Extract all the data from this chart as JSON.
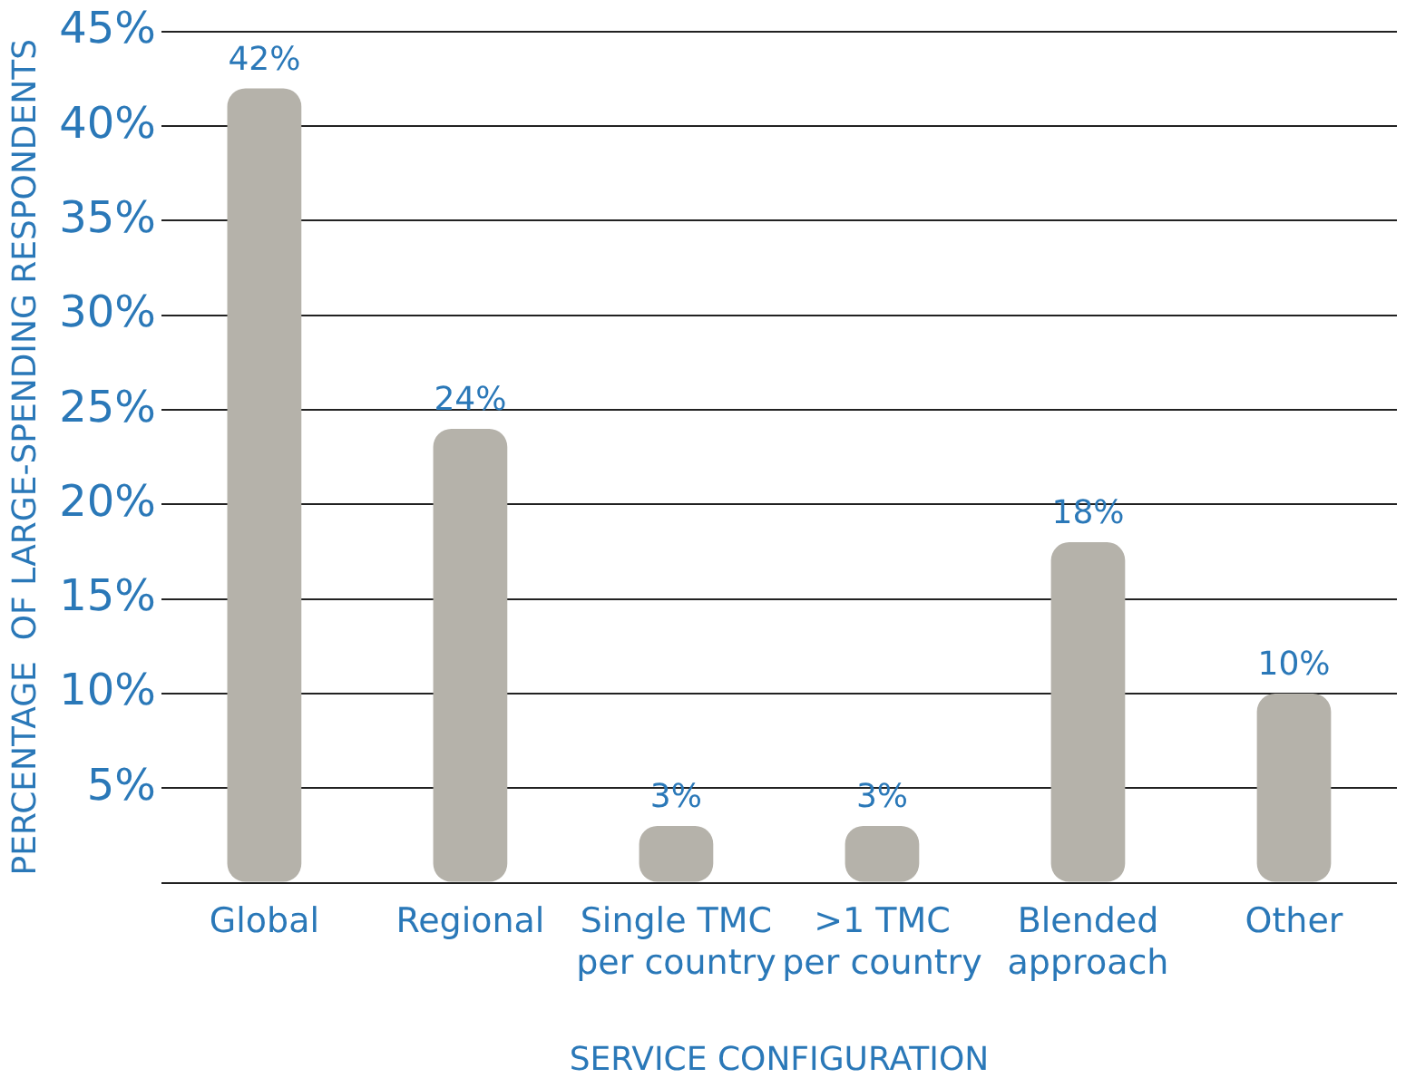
{
  "chart_data": {
    "type": "bar",
    "xlabel": "SERVICE CONFIGURATION",
    "ylabel": "PERCENTAGE  OF LARGE-SPENDING RESPONDENTS",
    "categories": [
      "Global",
      "Regional",
      "Single TMC\nper country",
      ">1 TMC\nper country",
      "Blended\napproach",
      "Other"
    ],
    "values": [
      42,
      24,
      3,
      3,
      18,
      10
    ],
    "value_labels": [
      "42%",
      "24%",
      "3%",
      "3%",
      "18%",
      "10%"
    ],
    "color": "#b5b2aa",
    "ylim": [
      0,
      45
    ],
    "yticks": [
      {
        "value": 0,
        "label": null
      },
      {
        "value": 5,
        "label": "5%"
      },
      {
        "value": 10,
        "label": "10%"
      },
      {
        "value": 15,
        "label": "15%"
      },
      {
        "value": 20,
        "label": "20%"
      },
      {
        "value": 25,
        "label": "25%"
      },
      {
        "value": 30,
        "label": "30%"
      },
      {
        "value": 35,
        "label": "35%"
      },
      {
        "value": 40,
        "label": "40%"
      },
      {
        "value": 45,
        "label": "45%"
      }
    ],
    "grid": "y",
    "legend": false
  }
}
